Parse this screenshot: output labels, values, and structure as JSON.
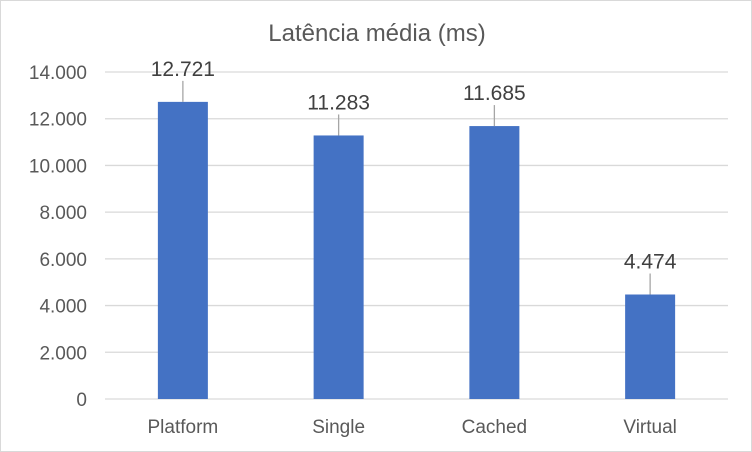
{
  "chart_data": {
    "type": "bar",
    "title": "Latência média (ms)",
    "categories": [
      "Platform",
      "Single",
      "Cached",
      "Virtual"
    ],
    "values": [
      12721,
      11283,
      11685,
      4474
    ],
    "data_labels": [
      "12.721",
      "11.283",
      "11.685",
      "4.474"
    ],
    "ylim": [
      0,
      14000
    ],
    "yticks": [
      0,
      2000,
      4000,
      6000,
      8000,
      10000,
      12000,
      14000
    ],
    "ytick_labels": [
      "0",
      "2.000",
      "4.000",
      "6.000",
      "8.000",
      "10.000",
      "12.000",
      "14.000"
    ],
    "grid": true,
    "legend": "none",
    "colors": {
      "bar": "#4472c4",
      "grid": "#d9d9d9",
      "axis_text": "#595959",
      "data_label": "#404040",
      "leader_line": "#a6a6a6"
    }
  }
}
